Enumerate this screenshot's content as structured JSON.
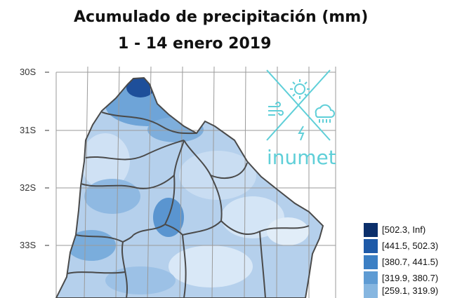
{
  "title": "Acumulado de precipitación (mm)",
  "subtitle": "1 - 14 enero 2019",
  "lat_labels": [
    "30S",
    "31S",
    "32S",
    "33S"
  ],
  "logo": {
    "text": "inumet",
    "icons": [
      "sun-icon",
      "wind-icon",
      "cloud-rain-icon",
      "lightning-icon"
    ]
  },
  "legend": [
    {
      "label": "[502.3, Inf)",
      "color": "#0b2f6b"
    },
    {
      "label": "[441.5, 502.3)",
      "color": "#1e5aa8"
    },
    {
      "label": "[380.7, 441.5)",
      "color": "#3b7fc4"
    },
    {
      "label": "[319.9, 380.7)",
      "color": "#5e9bd3"
    },
    {
      "label": "[259.1, 319.9)",
      "color": "#86b6e0"
    }
  ],
  "colors": {
    "grid": "#9a9a9a",
    "border": "#4a4a4a",
    "logo": "#5fcfd8",
    "base_fill": "#a9c8e8"
  }
}
